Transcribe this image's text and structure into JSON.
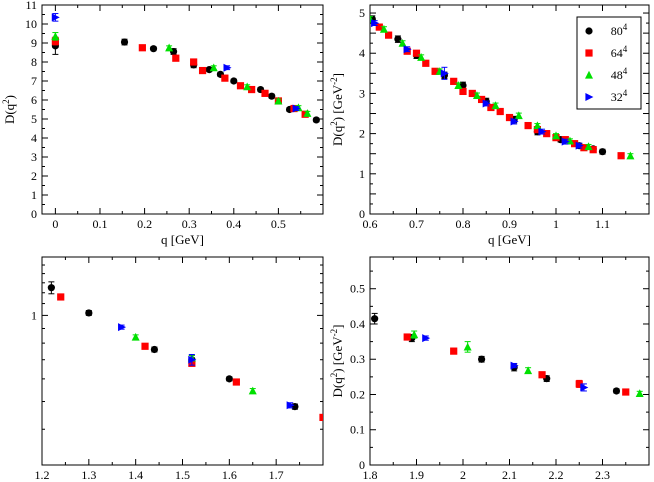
{
  "chart_data": [
    {
      "type": "scatter",
      "panel": "top-left",
      "xlabel": "q  [GeV]",
      "ylabel": "D(q^2)",
      "xlim": [
        -0.03,
        0.6
      ],
      "ylim": [
        0,
        11
      ],
      "xticks": [
        0,
        0.1,
        0.2,
        0.3,
        0.4,
        0.5
      ],
      "xtick_labels": [
        "0",
        "0.1",
        "0.2",
        "0.3",
        "0.4",
        "0.5"
      ],
      "yticks": [
        0,
        1,
        2,
        3,
        4,
        5,
        6,
        7,
        8,
        9,
        10,
        11
      ],
      "ytick_labels": [
        "0",
        "1",
        "2",
        "3",
        "4",
        "5",
        "6",
        "7",
        "8",
        "9",
        "10",
        "11"
      ],
      "series": [
        {
          "name": "80^4",
          "marker": "circle",
          "color": "#000000",
          "points": [
            [
              0,
              8.85,
              0.45
            ],
            [
              0.155,
              9.05,
              0.15
            ],
            [
              0.22,
              8.7,
              0.1
            ],
            [
              0.265,
              8.55,
              0.15
            ],
            [
              0.31,
              7.85,
              0.15
            ],
            [
              0.345,
              7.6,
              0.1
            ],
            [
              0.37,
              7.35,
              0.1
            ],
            [
              0.4,
              7.0,
              0.1
            ],
            [
              0.46,
              6.55,
              0.1
            ],
            [
              0.485,
              6.2,
              0.1
            ],
            [
              0.525,
              5.5,
              0.1
            ],
            [
              0.585,
              4.95,
              0.1
            ]
          ]
        },
        {
          "name": "64^4",
          "marker": "square",
          "color": "#ff0000",
          "points": [
            [
              0,
              9.1,
              0.2
            ],
            [
              0.195,
              8.75,
              0.1
            ],
            [
              0.27,
              8.2,
              0.1
            ],
            [
              0.31,
              8.0,
              0.1
            ],
            [
              0.33,
              7.55,
              0.1
            ],
            [
              0.38,
              7.15,
              0.1
            ],
            [
              0.415,
              6.75,
              0.1
            ],
            [
              0.44,
              6.55,
              0.1
            ],
            [
              0.47,
              6.35,
              0.1
            ],
            [
              0.5,
              5.95,
              0.1
            ],
            [
              0.535,
              5.55,
              0.1
            ],
            [
              0.56,
              5.25,
              0.1
            ]
          ]
        },
        {
          "name": "48^4",
          "marker": "triangle",
          "color": "#00e000",
          "points": [
            [
              0,
              9.35,
              0.2
            ],
            [
              0.255,
              8.75,
              0.1
            ],
            [
              0.355,
              7.7,
              0.1
            ],
            [
              0.43,
              6.7,
              0.1
            ],
            [
              0.5,
              5.95,
              0.1
            ],
            [
              0.545,
              5.6,
              0.1
            ],
            [
              0.565,
              5.3,
              0.1
            ]
          ]
        },
        {
          "name": "32^4",
          "marker": "triangle-right",
          "color": "#0000ff",
          "points": [
            [
              0,
              10.35,
              0.2
            ],
            [
              0.385,
              7.7,
              0.1
            ],
            [
              0.54,
              5.55,
              0.1
            ]
          ]
        }
      ]
    },
    {
      "type": "scatter",
      "panel": "top-right",
      "xlabel": "q  [GeV]",
      "ylabel": "D(q^2)  [GeV^-2]",
      "xlim": [
        0.6,
        1.2
      ],
      "ylim": [
        0,
        5.2
      ],
      "xticks": [
        0.6,
        0.7,
        0.8,
        0.9,
        1.0,
        1.1
      ],
      "xtick_labels": [
        "0.6",
        "0.7",
        "0.8",
        "0.9",
        "1",
        "1.1"
      ],
      "yticks": [
        0,
        0.5,
        1,
        1.5,
        2,
        2.5,
        3,
        3.5,
        4,
        4.5,
        5
      ],
      "ytick_labels": [
        "0",
        "",
        "1",
        "",
        "2",
        "",
        "3",
        "",
        "4",
        "",
        "5"
      ],
      "legend": {
        "position": "top-right",
        "entries": [
          "80^4",
          "64^4",
          "48^4",
          "32^4"
        ]
      },
      "series": [
        {
          "name": "80^4",
          "marker": "circle",
          "color": "#000000",
          "points": [
            [
              0.605,
              4.85,
              0.08
            ],
            [
              0.66,
              4.35,
              0.08
            ],
            [
              0.7,
              3.95,
              0.08
            ],
            [
              0.76,
              3.45,
              0.08
            ],
            [
              0.8,
              3.2,
              0.08
            ],
            [
              0.85,
              2.8,
              0.08
            ],
            [
              0.91,
              2.35,
              0.08
            ],
            [
              0.96,
              2.05,
              0.08
            ],
            [
              1.01,
              1.85,
              0.06
            ],
            [
              1.05,
              1.7,
              0.06
            ],
            [
              1.08,
              1.62,
              0.06
            ],
            [
              1.1,
              1.55,
              0.06
            ]
          ]
        },
        {
          "name": "64^4",
          "marker": "square",
          "color": "#ff0000",
          "points": [
            [
              0.62,
              4.65,
              0.06
            ],
            [
              0.64,
              4.45,
              0.06
            ],
            [
              0.68,
              4.05,
              0.06
            ],
            [
              0.7,
              4.0,
              0.06
            ],
            [
              0.72,
              3.75,
              0.06
            ],
            [
              0.74,
              3.55,
              0.06
            ],
            [
              0.78,
              3.3,
              0.06
            ],
            [
              0.8,
              3.05,
              0.06
            ],
            [
              0.82,
              3.0,
              0.06
            ],
            [
              0.84,
              2.85,
              0.06
            ],
            [
              0.86,
              2.65,
              0.06
            ],
            [
              0.88,
              2.55,
              0.06
            ],
            [
              0.9,
              2.4,
              0.06
            ],
            [
              0.94,
              2.2,
              0.06
            ],
            [
              0.96,
              2.1,
              0.05
            ],
            [
              0.98,
              2.0,
              0.05
            ],
            [
              1.0,
              1.9,
              0.05
            ],
            [
              1.02,
              1.85,
              0.05
            ],
            [
              1.04,
              1.75,
              0.05
            ],
            [
              1.06,
              1.65,
              0.05
            ],
            [
              1.08,
              1.6,
              0.05
            ],
            [
              1.14,
              1.45,
              0.05
            ]
          ]
        },
        {
          "name": "48^4",
          "marker": "triangle",
          "color": "#00e000",
          "points": [
            [
              0.6,
              4.85,
              0.06
            ],
            [
              0.63,
              4.6,
              0.06
            ],
            [
              0.67,
              4.25,
              0.06
            ],
            [
              0.71,
              3.9,
              0.06
            ],
            [
              0.75,
              3.55,
              0.06
            ],
            [
              0.79,
              3.2,
              0.06
            ],
            [
              0.83,
              2.95,
              0.06
            ],
            [
              0.87,
              2.7,
              0.06
            ],
            [
              0.92,
              2.45,
              0.06
            ],
            [
              0.96,
              2.2,
              0.05
            ],
            [
              1.0,
              1.95,
              0.05
            ],
            [
              1.03,
              1.82,
              0.05
            ],
            [
              1.07,
              1.68,
              0.05
            ],
            [
              1.16,
              1.45,
              0.05
            ]
          ]
        },
        {
          "name": "32^4",
          "marker": "triangle-right",
          "color": "#0000ff",
          "points": [
            [
              0.61,
              4.75,
              0.06
            ],
            [
              0.68,
              4.1,
              0.06
            ],
            [
              0.76,
              3.5,
              0.15
            ],
            [
              0.85,
              2.75,
              0.06
            ],
            [
              0.91,
              2.3,
              0.06
            ],
            [
              0.97,
              2.05,
              0.06
            ],
            [
              1.02,
              1.8,
              0.06
            ],
            [
              1.05,
              1.7,
              0.06
            ]
          ]
        }
      ]
    },
    {
      "type": "scatter",
      "panel": "bottom-left",
      "xlabel": "",
      "ylabel": "",
      "xlim": [
        1.2,
        1.8
      ],
      "ylim": [
        0.3,
        1.6
      ],
      "yscale": "log",
      "xticks": [
        1.2,
        1.3,
        1.4,
        1.5,
        1.6,
        1.7
      ],
      "xtick_labels": [
        "1.2",
        "1.3",
        "1.4",
        "1.5",
        "1.6",
        "1.7"
      ],
      "yticks": [
        1
      ],
      "ytick_labels": [
        "1"
      ],
      "series": [
        {
          "name": "80^4",
          "marker": "circle",
          "color": "#000000",
          "points": [
            [
              1.22,
              1.25,
              0.06
            ],
            [
              1.3,
              1.02,
              0.02
            ],
            [
              1.44,
              0.76,
              0.015
            ],
            [
              1.52,
              0.7,
              0.025
            ],
            [
              1.6,
              0.6,
              0.01
            ],
            [
              1.74,
              0.48,
              0.01
            ]
          ]
        },
        {
          "name": "64^4",
          "marker": "square",
          "color": "#ff0000",
          "points": [
            [
              1.24,
              1.16,
              0.02
            ],
            [
              1.42,
              0.78,
              0.015
            ],
            [
              1.52,
              0.68,
              0.015
            ],
            [
              1.615,
              0.585,
              0.01
            ],
            [
              1.8,
              0.44,
              0.01
            ]
          ]
        },
        {
          "name": "48^4",
          "marker": "triangle",
          "color": "#00e000",
          "points": [
            [
              1.4,
              0.84,
              0.015
            ],
            [
              1.52,
              0.71,
              0.015
            ],
            [
              1.65,
              0.545,
              0.01
            ]
          ]
        },
        {
          "name": "32^4",
          "marker": "triangle-right",
          "color": "#0000ff",
          "points": [
            [
              1.37,
              0.91,
              0.015
            ],
            [
              1.52,
              0.7,
              0.03
            ],
            [
              1.73,
              0.485,
              0.01
            ]
          ]
        }
      ]
    },
    {
      "type": "scatter",
      "panel": "bottom-right",
      "xlabel": "",
      "ylabel": "D(q^2)  [GeV^-2]",
      "xlim": [
        1.8,
        2.4
      ],
      "ylim": [
        0,
        0.59
      ],
      "xticks": [
        1.8,
        1.9,
        2.0,
        2.1,
        2.2,
        2.3
      ],
      "xtick_labels": [
        "1.8",
        "1.9",
        "2",
        "2.1",
        "2.2",
        "2.3"
      ],
      "yticks": [
        0,
        0.1,
        0.2,
        0.3,
        0.4,
        0.5
      ],
      "ytick_labels": [
        "0",
        "0.1",
        "0.2",
        "0.3",
        "0.4",
        "0.5"
      ],
      "series": [
        {
          "name": "80^4",
          "marker": "circle",
          "color": "#000000",
          "points": [
            [
              1.81,
              0.415,
              0.015
            ],
            [
              1.89,
              0.36,
              0.01
            ],
            [
              2.04,
              0.3,
              0.008
            ],
            [
              2.11,
              0.277,
              0.01
            ],
            [
              2.18,
              0.245,
              0.008
            ],
            [
              2.33,
              0.21,
              0.006
            ]
          ]
        },
        {
          "name": "64^4",
          "marker": "square",
          "color": "#ff0000",
          "points": [
            [
              1.88,
              0.363,
              0.008
            ],
            [
              1.98,
              0.323,
              0.008
            ],
            [
              2.17,
              0.256,
              0.006
            ],
            [
              2.25,
              0.23,
              0.01
            ],
            [
              2.35,
              0.207,
              0.006
            ]
          ]
        },
        {
          "name": "48^4",
          "marker": "triangle",
          "color": "#00e000",
          "points": [
            [
              1.895,
              0.37,
              0.01
            ],
            [
              2.01,
              0.335,
              0.015
            ],
            [
              2.14,
              0.268,
              0.008
            ],
            [
              2.38,
              0.203,
              0.006
            ]
          ]
        },
        {
          "name": "32^4",
          "marker": "triangle-right",
          "color": "#0000ff",
          "points": [
            [
              1.92,
              0.36,
              0.006
            ],
            [
              2.11,
              0.282,
              0.006
            ],
            [
              2.26,
              0.22,
              0.01
            ]
          ]
        }
      ]
    }
  ]
}
